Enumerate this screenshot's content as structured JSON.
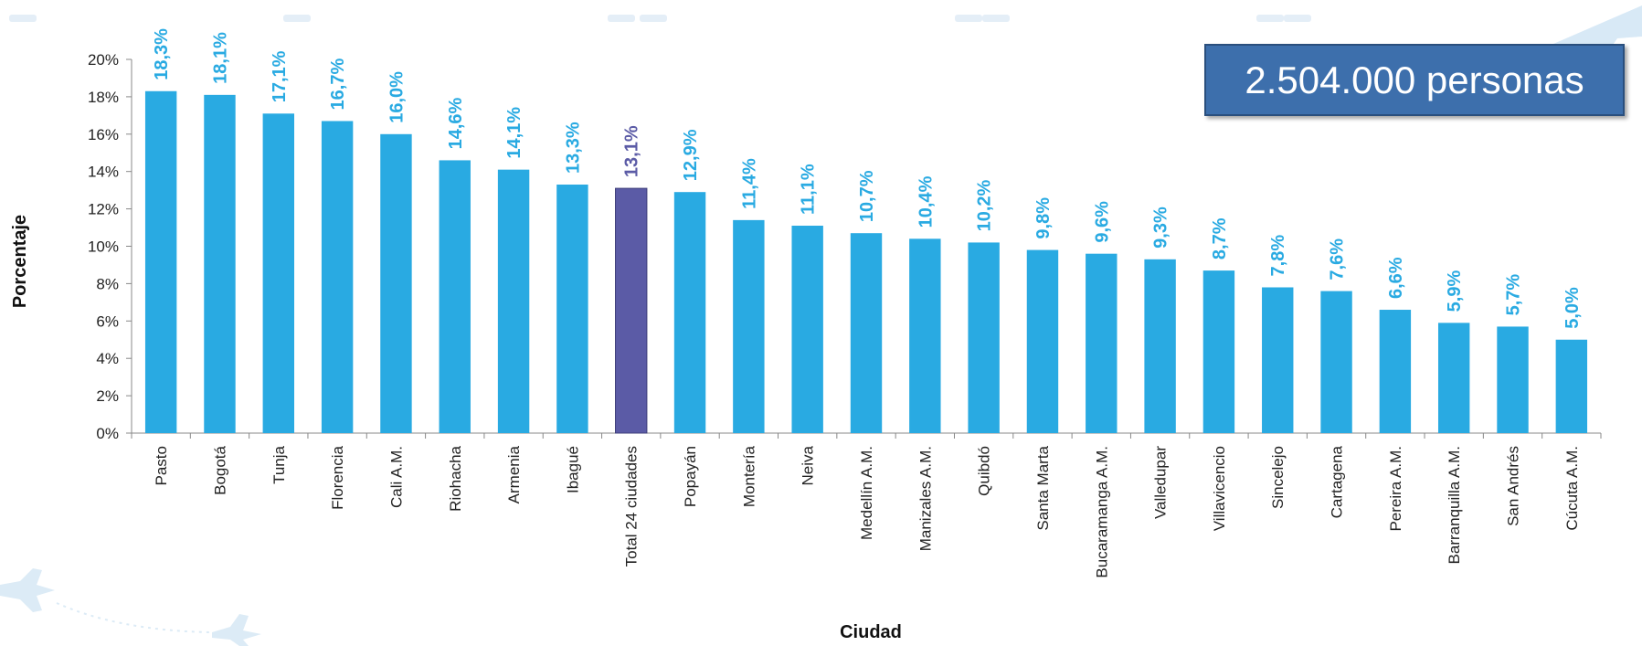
{
  "chart_data": {
    "type": "bar",
    "xlabel": "Ciudad",
    "ylabel": "Porcentaje",
    "ylim": [
      0,
      20
    ],
    "yticks": [
      "0%",
      "2%",
      "4%",
      "6%",
      "8%",
      "10%",
      "12%",
      "14%",
      "16%",
      "18%",
      "20%"
    ],
    "grid": false,
    "legend": "none",
    "categories": [
      "Pasto",
      "Bogotá",
      "Tunja",
      "Florencia",
      "Cali A.M.",
      "Riohacha",
      "Armenia",
      "Ibagué",
      "Total 24 ciudades",
      "Popayán",
      "Montería",
      "Neiva",
      "Medellín A.M.",
      "Manizales A.M.",
      "Quibdó",
      "Santa Marta",
      "Bucaramanga A.M.",
      "Valledupar",
      "Villavicencio",
      "Sincelejo",
      "Cartagena",
      "Pereira A.M.",
      "Barranquilla A.M.",
      "San Andrés",
      "Cúcuta A.M."
    ],
    "values": [
      18.3,
      18.1,
      17.1,
      16.7,
      16.0,
      14.6,
      14.1,
      13.3,
      13.1,
      12.9,
      11.4,
      11.1,
      10.7,
      10.4,
      10.2,
      9.8,
      9.6,
      9.3,
      8.7,
      7.8,
      7.6,
      6.6,
      5.9,
      5.7,
      5.0
    ],
    "value_labels": [
      "18,3%",
      "18,1%",
      "17,1%",
      "16,7%",
      "16,0%",
      "14,6%",
      "14,1%",
      "13,3%",
      "13,1%",
      "12,9%",
      "11,4%",
      "11,1%",
      "10,7%",
      "10,4%",
      "10,2%",
      "9,8%",
      "9,6%",
      "9,3%",
      "8,7%",
      "7,8%",
      "7,6%",
      "6,6%",
      "5,9%",
      "5,7%",
      "5,0%"
    ],
    "highlight_category": "Total 24 ciudades",
    "colors": {
      "bar": "#29aae2",
      "highlight": "#5b5ba6",
      "label": "#29aae2",
      "highlight_label": "#5b5ba6"
    }
  },
  "callout": {
    "text": "2.504.000 personas"
  }
}
